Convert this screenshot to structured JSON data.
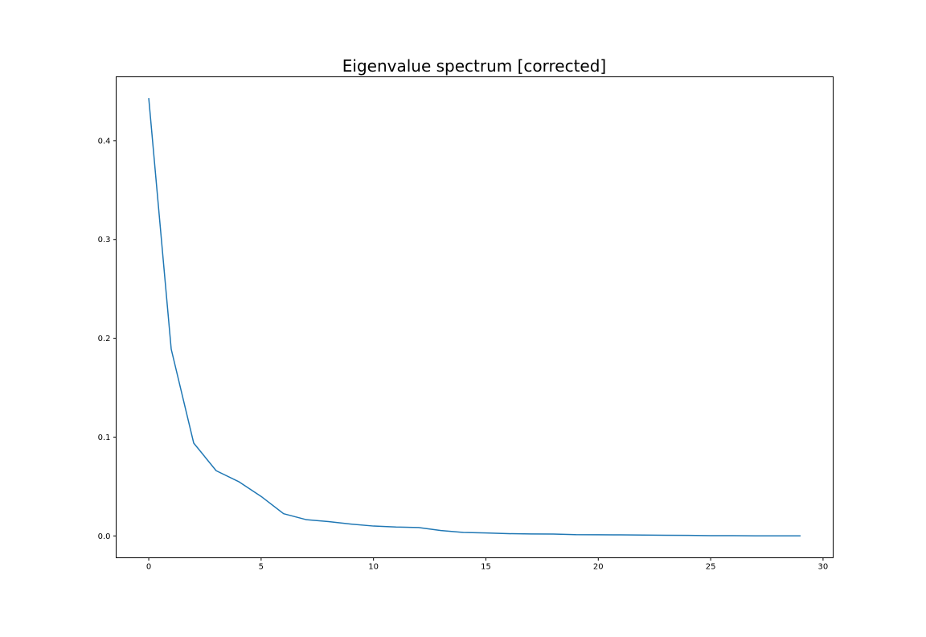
{
  "chart_data": {
    "type": "line",
    "title": "Eigenvalue spectrum [corrected]",
    "xlabel": "",
    "ylabel": "",
    "xlim": [
      -1.45,
      30.45
    ],
    "ylim": [
      -0.0221,
      0.4646
    ],
    "xticks": [
      0,
      5,
      10,
      15,
      20,
      25,
      30
    ],
    "xtick_labels": [
      "0",
      "5",
      "10",
      "15",
      "20",
      "25",
      "30"
    ],
    "yticks": [
      0.0,
      0.1,
      0.2,
      0.3,
      0.4
    ],
    "ytick_labels": [
      "0.0",
      "0.1",
      "0.2",
      "0.3",
      "0.4"
    ],
    "grid": false,
    "series": [
      {
        "color": "#1f77b4",
        "x": [
          0,
          1,
          2,
          3,
          4,
          5,
          6,
          7,
          8,
          9,
          10,
          11,
          12,
          13,
          14,
          15,
          16,
          17,
          18,
          19,
          20,
          21,
          22,
          23,
          24,
          25,
          26,
          27,
          28,
          29
        ],
        "y": [
          0.443,
          0.189,
          0.094,
          0.066,
          0.055,
          0.04,
          0.0225,
          0.0165,
          0.0145,
          0.012,
          0.01,
          0.009,
          0.0085,
          0.0055,
          0.0035,
          0.003,
          0.0023,
          0.002,
          0.0019,
          0.0013,
          0.0012,
          0.0011,
          0.0009,
          0.0007,
          0.0006,
          0.0003,
          0.0003,
          0.0001,
          0.0001,
          0.0001
        ]
      }
    ]
  }
}
